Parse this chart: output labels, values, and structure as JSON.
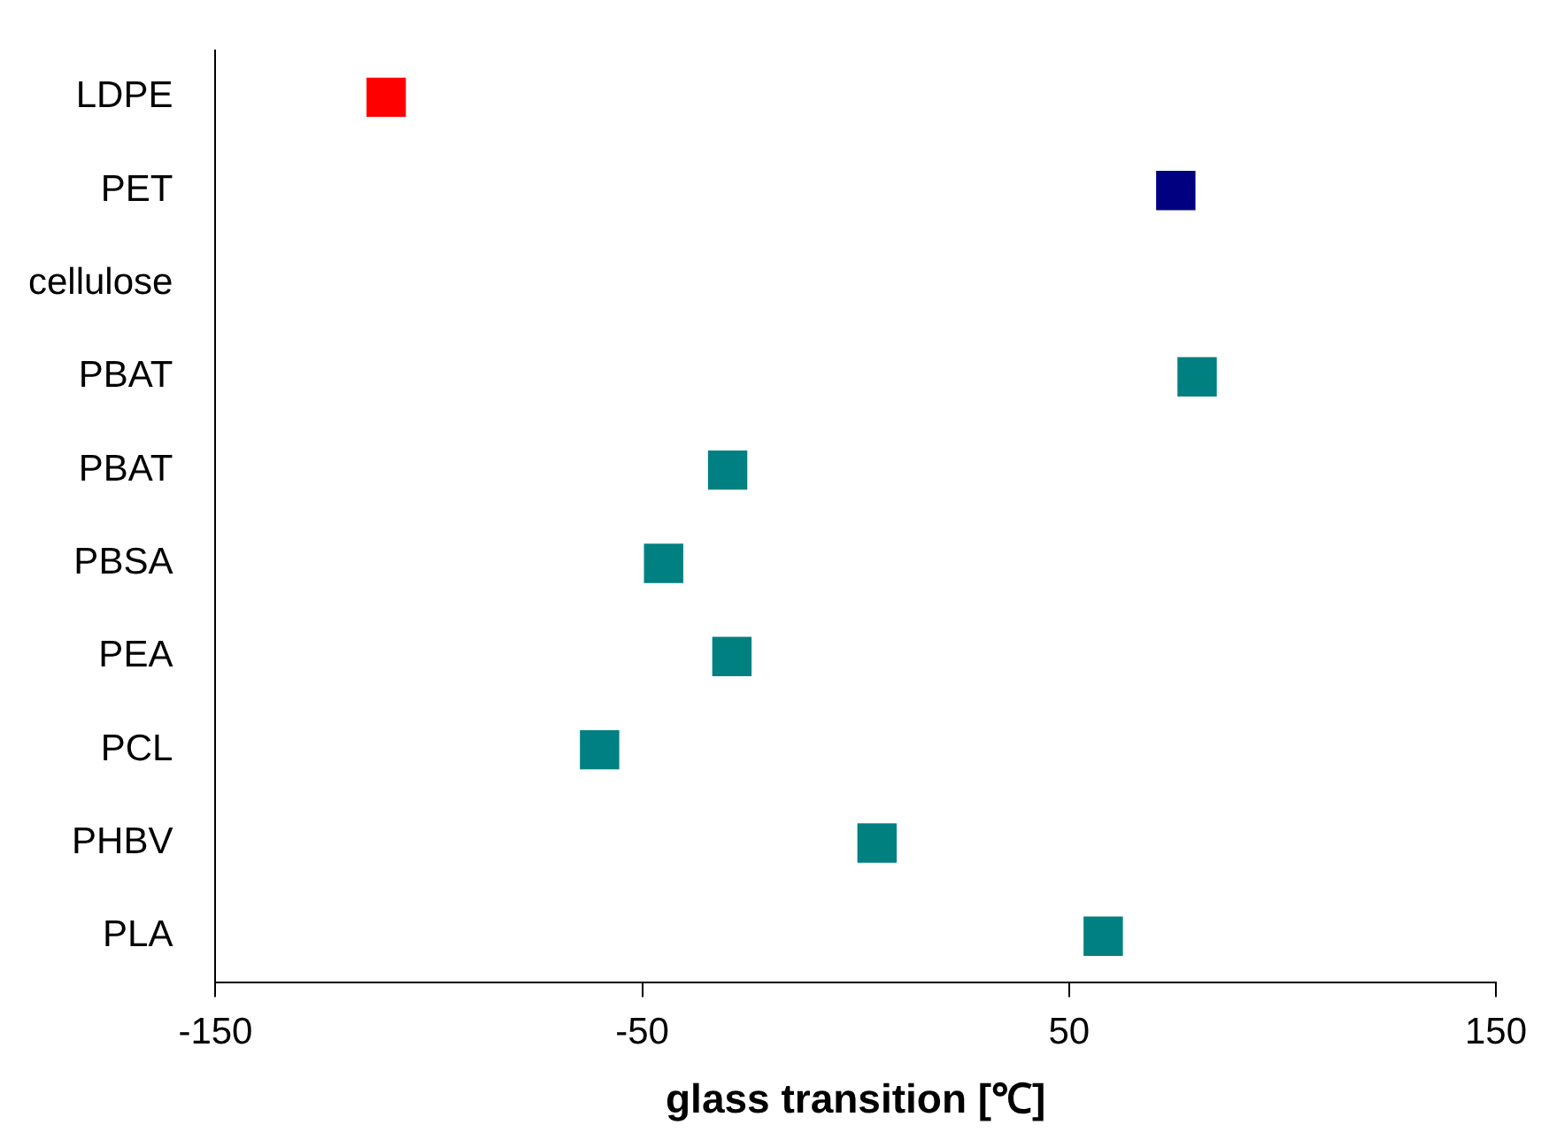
{
  "chart_data": {
    "type": "scatter",
    "xlabel": "glass transition [℃]",
    "categories": [
      "LDPE",
      "PET",
      "cellulose",
      "PBAT",
      "PBAT",
      "PBSA",
      "PEA",
      "PCL",
      "PHBV",
      "PLA"
    ],
    "values": [
      -110,
      75,
      null,
      80,
      -30,
      -45,
      -29,
      -60,
      5,
      58
    ],
    "colors": [
      "#ff0000",
      "#000080",
      null,
      "#008080",
      "#008080",
      "#008080",
      "#008080",
      "#008080",
      "#008080",
      "#008080"
    ],
    "xlim": [
      -150,
      150
    ],
    "xticks": [
      -150,
      -50,
      50,
      150
    ],
    "orientation": "horizontal",
    "marker": "square",
    "grid": false,
    "legend": false
  }
}
